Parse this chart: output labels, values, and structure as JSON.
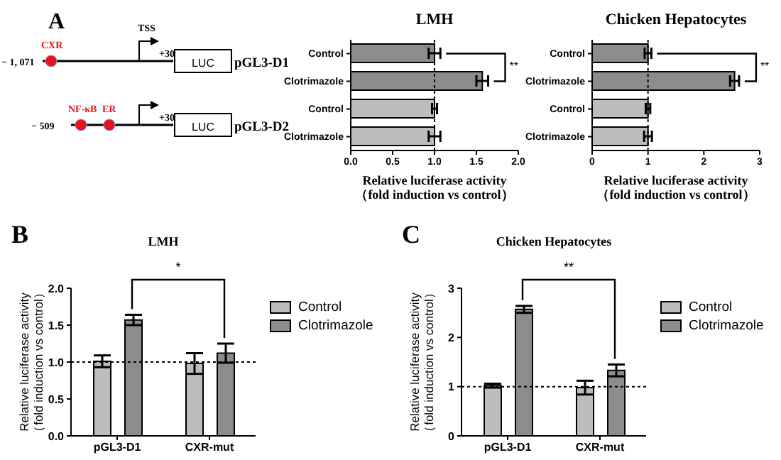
{
  "chart_data": [
    {
      "type": "other",
      "annotations": [
        "A",
        "TSS",
        "CXR",
        "− 1, 071",
        "+30",
        "LUC",
        "pGL3-D1",
        "NF-κB",
        "ER",
        "− 509",
        "+30",
        "LUC",
        "pGL3-D2"
      ]
    },
    {
      "type": "bar",
      "orientation": "horizontal",
      "title": "LMH",
      "xlabel": "Relative luciferase activity\n（fold induction vs control）",
      "categories": [
        "Control",
        "Clotrimazole",
        "Control",
        "Clotrimazole"
      ],
      "values": [
        1.0,
        1.57,
        1.0,
        1.0
      ],
      "errors": [
        0.07,
        0.07,
        0.03,
        0.07
      ],
      "colors": [
        "#8c8c8c",
        "#8c8c8c",
        "#bdbdbd",
        "#bdbdbd"
      ],
      "xlim": [
        0,
        2
      ],
      "xticks": [
        {
          "value": 0,
          "label": "0.0"
        },
        {
          "value": 0.5,
          "label": "0.5"
        },
        {
          "value": 1,
          "label": "1.0"
        },
        {
          "value": 1.5,
          "label": "1.5"
        },
        {
          "value": 2,
          "label": "2.0"
        }
      ],
      "ref_lines": [
        {
          "axis": "x",
          "value": 1,
          "line_style": "dotted"
        }
      ],
      "annotations": [
        "**"
      ]
    },
    {
      "type": "bar",
      "orientation": "horizontal",
      "title": "Chicken Hepatocytes",
      "xlabel": "Relative luciferase activity\n（fold induction vs control）",
      "categories": [
        "Control",
        "Clotrimazole",
        "Control",
        "Clotrimazole"
      ],
      "values": [
        1.0,
        2.55,
        1.0,
        1.0
      ],
      "errors": [
        0.06,
        0.08,
        0.04,
        0.07
      ],
      "colors": [
        "#8c8c8c",
        "#8c8c8c",
        "#bdbdbd",
        "#bdbdbd"
      ],
      "xlim": [
        0,
        3
      ],
      "xticks": [
        0,
        1,
        2,
        3
      ],
      "ref_lines": [
        {
          "axis": "x",
          "value": 1,
          "line_style": "dotted"
        }
      ],
      "annotations": [
        "**"
      ]
    },
    {
      "type": "bar",
      "title": "LMH",
      "ylabel": "Relative luciferase activity\n（fold induction vs control）",
      "categories": [
        "pGL3-D1",
        "CXR-mut"
      ],
      "series": [
        {
          "name": "Control",
          "color": "#bdbdbd",
          "values": [
            1.01,
            0.98
          ],
          "errors": [
            0.08,
            0.14
          ]
        },
        {
          "name": "Clotrimazole",
          "color": "#8c8c8c",
          "values": [
            1.57,
            1.12
          ],
          "errors": [
            0.07,
            0.13
          ]
        }
      ],
      "ylim": [
        0,
        2
      ],
      "yticks": [
        {
          "value": 0,
          "label": "0.0"
        },
        {
          "value": 0.5,
          "label": "0.5"
        },
        {
          "value": 1,
          "label": "1.0"
        },
        {
          "value": 1.5,
          "label": "1.5"
        },
        {
          "value": 2,
          "label": "2.0"
        }
      ],
      "ref_lines": [
        {
          "axis": "y",
          "value": 1,
          "line_style": "dotted"
        }
      ],
      "legend": "right",
      "annotations": [
        "B",
        "*"
      ]
    },
    {
      "type": "bar",
      "title": "Chicken Hepatocytes",
      "ylabel": "Relative luciferase activity\n（fold induction vs control）",
      "categories": [
        "pGL3-D1",
        "CXR-mut"
      ],
      "series": [
        {
          "name": "Control",
          "color": "#bdbdbd",
          "values": [
            1.02,
            0.98
          ],
          "errors": [
            0.04,
            0.14
          ]
        },
        {
          "name": "Clotrimazole",
          "color": "#8c8c8c",
          "values": [
            2.57,
            1.33
          ],
          "errors": [
            0.07,
            0.12
          ]
        }
      ],
      "ylim": [
        0,
        3
      ],
      "yticks": [
        0,
        1,
        2,
        3
      ],
      "ref_lines": [
        {
          "axis": "y",
          "value": 1,
          "line_style": "dotted"
        }
      ],
      "legend": "right",
      "annotations": [
        "C",
        "**"
      ]
    }
  ]
}
